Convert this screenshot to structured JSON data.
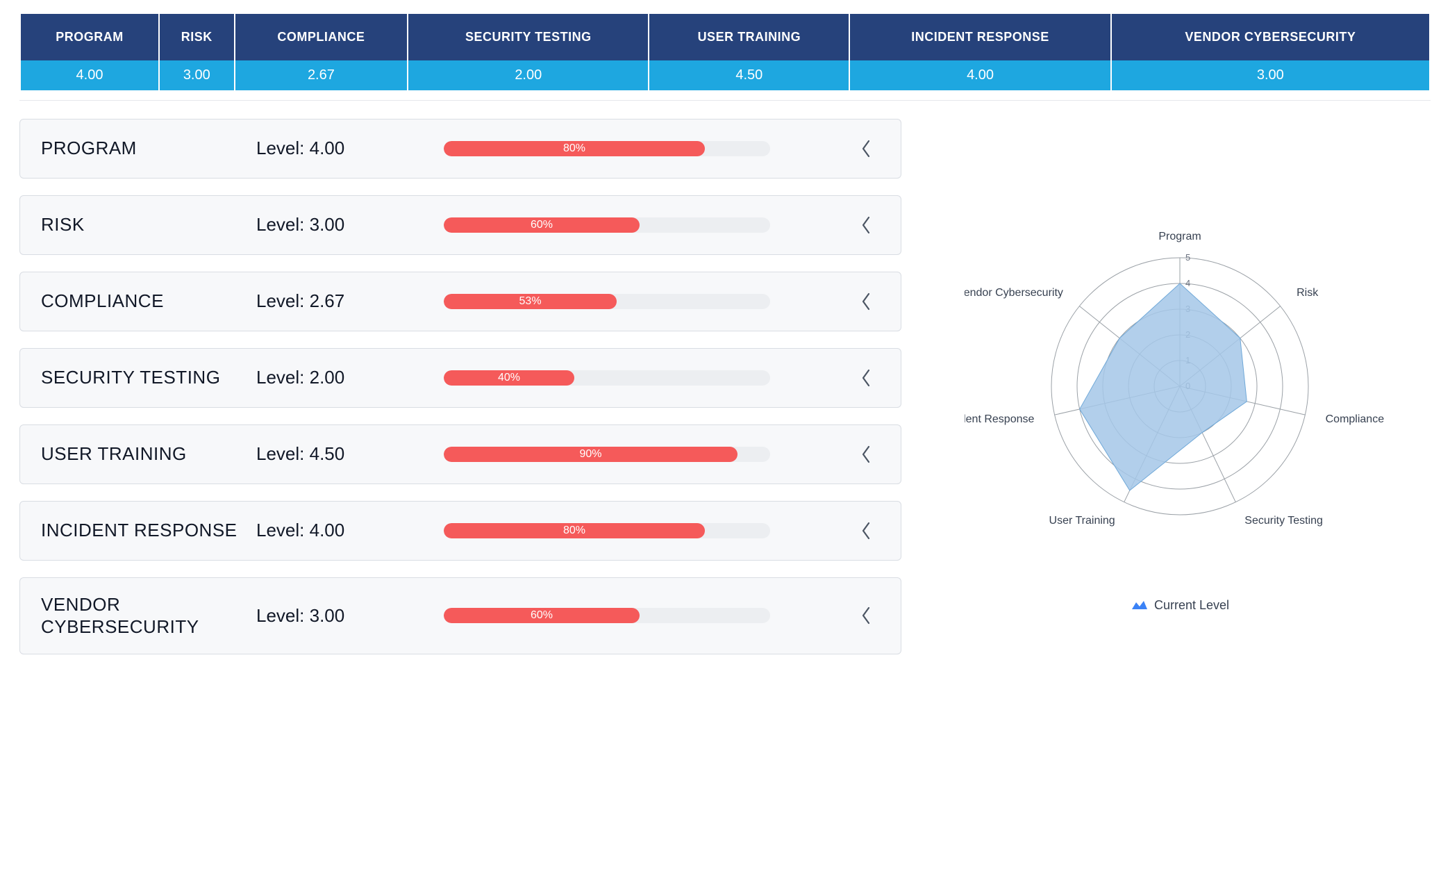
{
  "categories": [
    {
      "key": "program",
      "header": "PROGRAM",
      "score": "4.00",
      "name": "PROGRAM",
      "level_text": "Level: 4.00",
      "percent": 80,
      "percent_label": "80%",
      "radar_label": "Program",
      "value": 4.0
    },
    {
      "key": "risk",
      "header": "RISK",
      "score": "3.00",
      "name": "RISK",
      "level_text": "Level: 3.00",
      "percent": 60,
      "percent_label": "60%",
      "radar_label": "Risk",
      "value": 3.0
    },
    {
      "key": "compl",
      "header": "COMPLIANCE",
      "score": "2.67",
      "name": "COMPLIANCE",
      "level_text": "Level: 2.67",
      "percent": 53,
      "percent_label": "53%",
      "radar_label": "Compliance",
      "value": 2.67
    },
    {
      "key": "sectest",
      "header": "SECURITY TESTING",
      "score": "2.00",
      "name": "SECURITY TESTING",
      "level_text": "Level: 2.00",
      "percent": 40,
      "percent_label": "40%",
      "radar_label": "Security Testing",
      "value": 2.0
    },
    {
      "key": "training",
      "header": "USER TRAINING",
      "score": "4.50",
      "name": "USER TRAINING",
      "level_text": "Level: 4.50",
      "percent": 90,
      "percent_label": "90%",
      "radar_label": "User Training",
      "value": 4.5
    },
    {
      "key": "ir",
      "header": "INCIDENT RESPONSE",
      "score": "4.00",
      "name": "INCIDENT RESPONSE",
      "level_text": "Level: 4.00",
      "percent": 80,
      "percent_label": "80%",
      "radar_label": "Incident Response",
      "value": 4.0
    },
    {
      "key": "vendor",
      "header": "VENDOR CYBERSECURITY",
      "score": "3.00",
      "name": "VENDOR CYBERSECURITY",
      "level_text": "Level: 3.00",
      "percent": 60,
      "percent_label": "60%",
      "radar_label": "Vendor Cybersecurity",
      "value": 3.0
    }
  ],
  "colors": {
    "header_bg": "#26427b",
    "header_text": "#ffffff",
    "score_bg": "#1ea7e0",
    "score_text": "#ffffff",
    "card_bg": "#f7f8fa",
    "card_border": "#d9dde3",
    "progress_track": "#eceef1",
    "progress_fill": "#f55a5a",
    "progress_text": "#ffffff",
    "radar_fill": "#a4c7e8",
    "radar_stroke": "#6fa8d8",
    "radar_grid": "#9aa0a6",
    "legend_color": "#3b82f6",
    "chevron": "#4b5563"
  },
  "radar": {
    "max": 5,
    "rings": [
      0,
      1,
      2,
      3,
      4,
      5
    ],
    "tick_labels": [
      "0",
      "1",
      "2",
      "3",
      "4",
      "5"
    ],
    "legend_label": "Current Level",
    "label_fontsize": 16,
    "tick_fontsize": 13
  }
}
